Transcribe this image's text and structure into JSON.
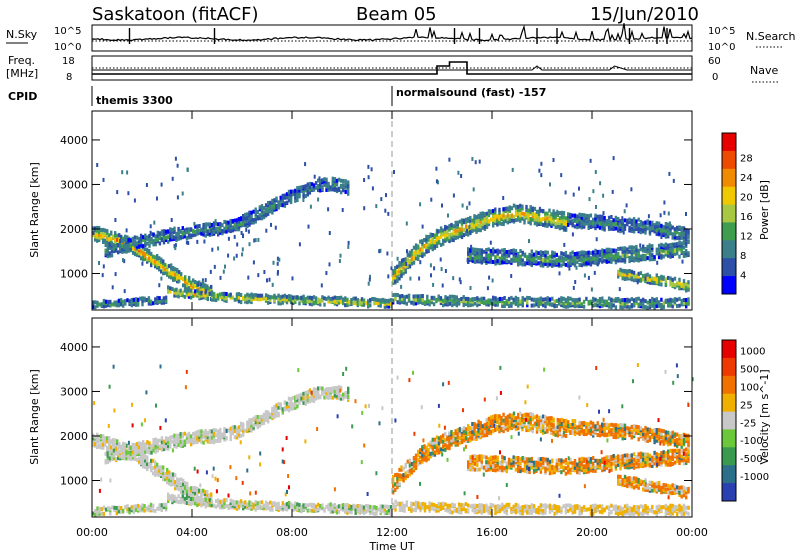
{
  "header": {
    "station": "Saskatoon (fitACF)",
    "beam": "Beam 05",
    "date": "15/Jun/2010"
  },
  "strip": {
    "left_top_label": "N.Sky",
    "left_freq_label1": "Freq.",
    "left_freq_label2": "[MHz]",
    "left_cpid_label": "CPID",
    "left_ticks_top": [
      "10^5",
      "10^0"
    ],
    "left_ticks_freq": [
      "18",
      "8"
    ],
    "right_ticks_top": [
      "10^5",
      "10^0"
    ],
    "right_ticks_nave": [
      "60",
      "0"
    ],
    "right_top_label": "N.Search",
    "right_nave_label": "Nave",
    "cpid_segments": [
      {
        "start_hour": 0,
        "label": "themis 3300"
      },
      {
        "start_hour": 12,
        "label": "normalsound (fast) -157"
      }
    ]
  },
  "chart_data": [
    {
      "type": "heatmap",
      "title": "",
      "xlabel": "Time UT",
      "ylabel": "Slant Range [km]",
      "colorbar_label": "Power [dB]",
      "x_ticks": [
        "00:00",
        "04:00",
        "08:00",
        "12:00",
        "16:00",
        "20:00",
        "00:00"
      ],
      "xlim": [
        0,
        24
      ],
      "ylim": [
        180,
        4650
      ],
      "y_ticks": [
        "1000",
        "2000",
        "3000",
        "4000"
      ],
      "colorbar_ticks": [
        "4",
        "8",
        "12",
        "16",
        "20",
        "24",
        "28"
      ],
      "colorbar_range": [
        0,
        30
      ],
      "colorbar_colors": [
        "#0000ff",
        "#2c4fa8",
        "#3a7f8a",
        "#3f9d4f",
        "#a8c844",
        "#f0c800",
        "#f08a00",
        "#ee4a00",
        "#e60000"
      ],
      "marker_hour": 12,
      "bands": [
        {
          "name": "band1",
          "t": [
            0.0,
            0.4,
            0.8,
            1.2,
            1.6,
            2.0,
            2.4,
            2.8,
            3.2,
            3.6,
            4.0,
            4.4,
            4.8
          ],
          "r": [
            1900,
            1850,
            1780,
            1700,
            1600,
            1450,
            1300,
            1150,
            1000,
            850,
            700,
            620,
            560
          ],
          "w": 300,
          "p": 22
        },
        {
          "name": "band2",
          "t": [
            0.5,
            1.0,
            1.5,
            2.0,
            2.5,
            3.0,
            3.5,
            4.0,
            4.5,
            5.0,
            5.5,
            6.0,
            6.5,
            7.0,
            7.5,
            8.0,
            8.5,
            9.0,
            9.5,
            10.0,
            10.3
          ],
          "r": [
            1500,
            1580,
            1650,
            1720,
            1780,
            1840,
            1900,
            1950,
            1980,
            2000,
            2050,
            2150,
            2300,
            2450,
            2600,
            2750,
            2850,
            2950,
            3000,
            2950,
            2900
          ],
          "w": 280,
          "p": 10
        },
        {
          "name": "band3",
          "t": [
            3.0,
            3.5,
            4.0,
            4.5,
            5.0,
            5.5,
            6.0,
            6.5,
            7.0,
            7.5,
            8.0,
            8.5,
            9.0,
            9.5,
            10.0,
            10.5,
            11.0,
            11.5,
            12.0
          ],
          "r": [
            600,
            560,
            530,
            500,
            480,
            460,
            440,
            430,
            420,
            410,
            400,
            390,
            380,
            370,
            360,
            350,
            340,
            330,
            320
          ],
          "w": 180,
          "p": 18
        },
        {
          "name": "band4",
          "t": [
            0.0,
            0.6,
            1.2,
            1.8,
            2.4,
            3.0
          ],
          "r": [
            300,
            320,
            340,
            360,
            380,
            400
          ],
          "w": 150,
          "p": 12
        },
        {
          "name": "band5",
          "t": [
            12.0,
            12.5,
            13.0,
            13.5,
            14.0,
            14.5,
            15.0,
            15.5,
            16.0,
            16.5,
            17.0,
            17.5,
            18.0,
            18.5,
            19.0
          ],
          "r": [
            900,
            1200,
            1500,
            1700,
            1850,
            1950,
            2050,
            2150,
            2250,
            2300,
            2350,
            2300,
            2250,
            2200,
            2150
          ],
          "w": 380,
          "p": 20
        },
        {
          "name": "band6",
          "t": [
            15.0,
            16.0,
            17.0,
            18.0,
            19.0,
            20.0,
            21.0,
            22.0,
            23.0,
            23.9
          ],
          "r": [
            1400,
            1380,
            1350,
            1320,
            1300,
            1350,
            1400,
            1450,
            1500,
            1550
          ],
          "w": 320,
          "p": 12
        },
        {
          "name": "band7",
          "t": [
            12.0,
            13.0,
            14.0,
            15.0,
            16.0,
            17.0,
            18.0,
            19.0,
            20.0,
            21.0,
            22.0,
            23.0,
            23.9
          ],
          "r": [
            420,
            400,
            380,
            370,
            360,
            355,
            350,
            345,
            340,
            335,
            330,
            330,
            330
          ],
          "w": 200,
          "p": 14
        },
        {
          "name": "band8",
          "t": [
            19.0,
            20.0,
            21.0,
            22.0,
            23.0,
            23.9
          ],
          "r": [
            2200,
            2150,
            2100,
            2050,
            1950,
            1850
          ],
          "w": 300,
          "p": 10
        },
        {
          "name": "band9",
          "t": [
            21.0,
            22.0,
            23.0,
            23.9
          ],
          "r": [
            1000,
            900,
            800,
            700
          ],
          "w": 220,
          "p": 20
        }
      ]
    },
    {
      "type": "heatmap",
      "title": "",
      "xlabel": "Time UT",
      "ylabel": "Slant Range [km]",
      "colorbar_label": "Velocity [m s^-1]",
      "x_ticks": [
        "00:00",
        "04:00",
        "08:00",
        "12:00",
        "16:00",
        "20:00",
        "00:00"
      ],
      "xlim": [
        0,
        24
      ],
      "ylim": [
        180,
        4650
      ],
      "y_ticks": [
        "1000",
        "2000",
        "3000",
        "4000"
      ],
      "colorbar_ticks": [
        "1000",
        "500",
        "100",
        "25",
        "-25",
        "-100",
        "-500",
        "-1000"
      ],
      "colorbar_colors": [
        "#2a3fb0",
        "#2c6f8a",
        "#3a9a50",
        "#6ac83a",
        "#c8c8c8",
        "#f0b000",
        "#f07000",
        "#ee3a00",
        "#e60000"
      ],
      "marker_hour": 12
    }
  ]
}
